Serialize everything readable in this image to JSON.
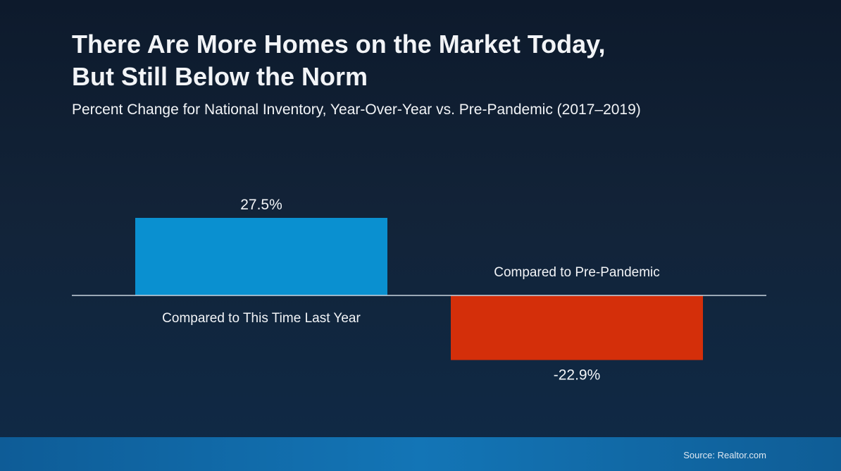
{
  "header": {
    "title_line1": "There Are More Homes on the Market Today,",
    "title_line2": "But Still Below the Norm",
    "subtitle": "Percent Change for National Inventory, Year-Over-Year vs. Pre-Pandemic (2017–2019)"
  },
  "footer": {
    "source": "Source: Realtor.com"
  },
  "colors": {
    "positive_bar": "#0a90d0",
    "negative_bar": "#d42f0a",
    "baseline": "#c9d3df"
  },
  "chart_data": {
    "type": "bar",
    "categories": [
      "Compared to This Time Last Year",
      "Compared to Pre-Pandemic"
    ],
    "values": [
      27.5,
      -22.9
    ],
    "data_labels": [
      "27.5%",
      "-22.9%"
    ],
    "title": "There Are More Homes on the Market Today, But Still Below the Norm",
    "subtitle": "Percent Change for National Inventory, Year-Over-Year vs. Pre-Pandemic (2017–2019)",
    "xlabel": "",
    "ylabel": "",
    "grid": false,
    "legend": "none"
  }
}
